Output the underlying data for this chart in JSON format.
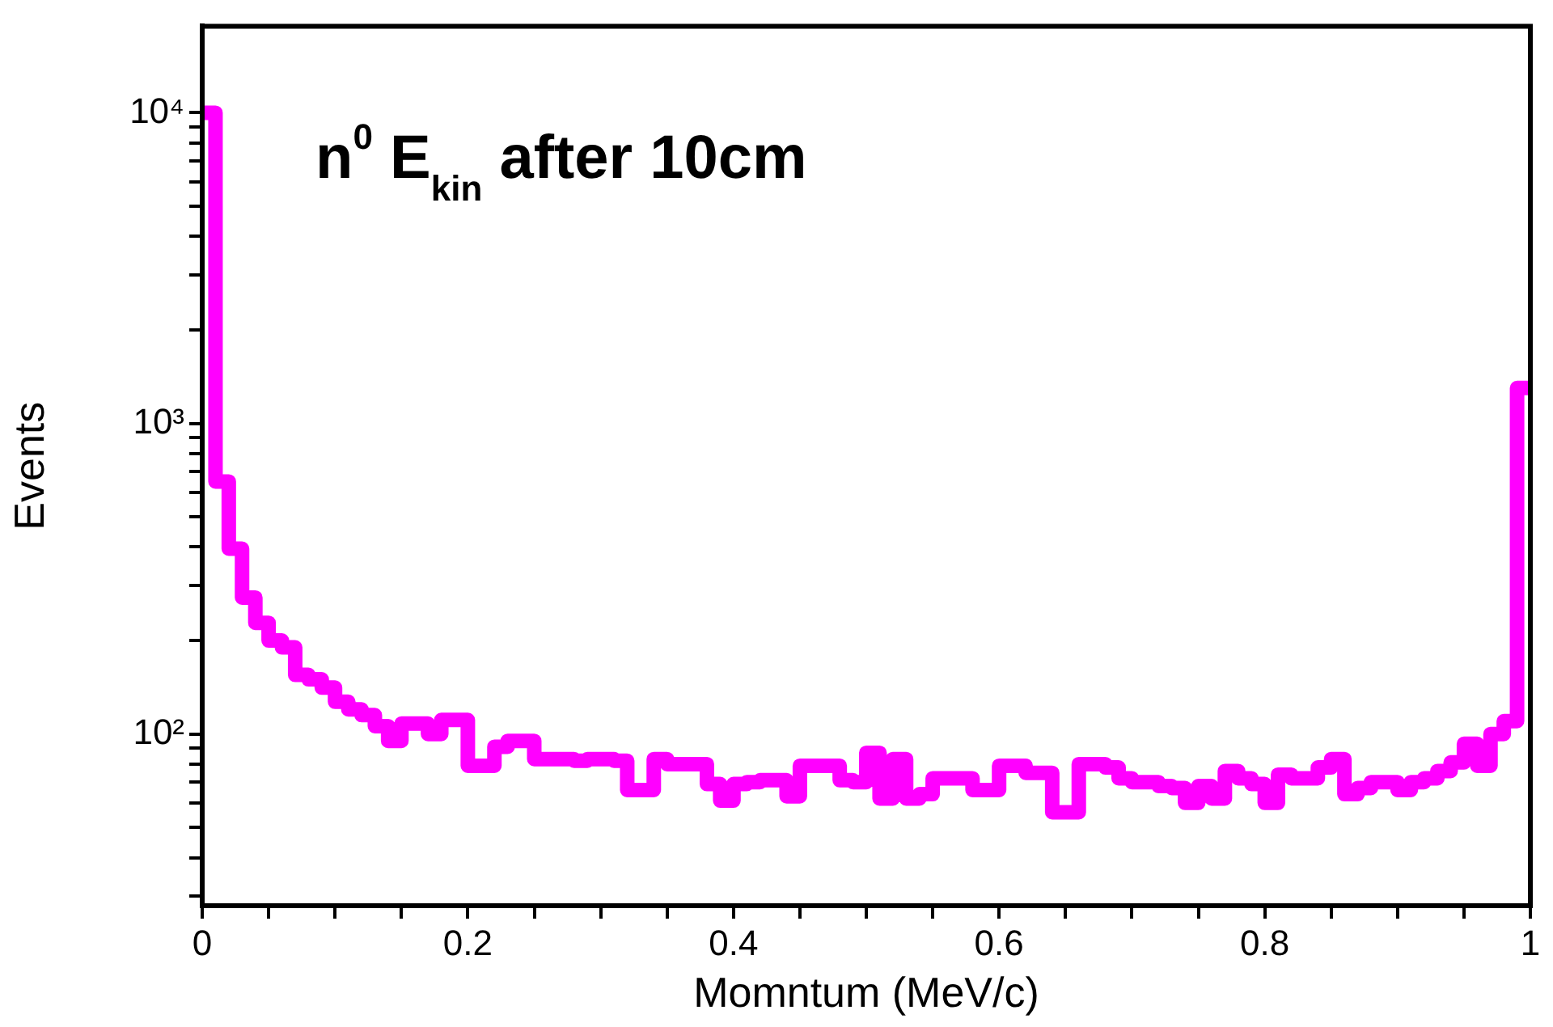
{
  "chart_data": {
    "type": "histogram",
    "title": "n$^{0}$ E$_{kin}$ after 10cm",
    "xlabel": "Momntum (MeV/c)",
    "ylabel": "Events",
    "color": "#ff00ff",
    "log": "y",
    "grid": false,
    "bins": [
      0,
      0.01,
      0.02,
      0.03,
      0.04,
      0.05,
      0.06,
      0.07,
      0.08,
      0.09,
      0.1,
      0.11,
      0.12,
      0.13,
      0.14,
      0.15,
      0.16,
      0.17,
      0.18,
      0.19,
      0.2,
      0.21,
      0.22,
      0.23,
      0.24,
      0.25,
      0.26,
      0.27,
      0.28,
      0.29,
      0.3,
      0.31,
      0.32,
      0.33,
      0.34,
      0.35,
      0.36,
      0.37,
      0.38,
      0.39,
      0.4,
      0.41,
      0.42,
      0.43,
      0.44,
      0.45,
      0.46,
      0.47,
      0.48,
      0.49,
      0.5,
      0.51,
      0.52,
      0.53,
      0.54,
      0.55,
      0.56,
      0.57,
      0.58,
      0.59,
      0.6,
      0.61,
      0.62,
      0.63,
      0.64,
      0.65,
      0.66,
      0.67,
      0.68,
      0.69,
      0.7,
      0.71,
      0.72,
      0.73,
      0.74,
      0.75,
      0.76,
      0.77,
      0.78,
      0.79,
      0.8,
      0.81,
      0.82,
      0.83,
      0.84,
      0.85,
      0.86,
      0.87,
      0.88,
      0.89,
      0.9,
      0.91,
      0.92,
      0.93,
      0.94,
      0.95,
      0.96,
      0.97,
      0.98,
      0.99,
      1
    ],
    "values": [
      10000,
      650,
      395,
      275,
      228,
      200,
      190,
      155,
      150,
      141,
      127,
      120,
      115,
      106,
      95,
      108,
      108,
      100,
      111,
      111,
      79,
      79,
      91,
      95,
      95,
      83,
      83,
      83,
      82,
      83,
      83,
      82,
      66,
      66,
      83,
      80,
      80,
      80,
      69,
      61,
      69,
      70,
      71,
      71,
      63,
      79,
      79,
      79,
      71,
      70,
      87,
      62,
      83,
      62,
      64,
      72,
      72,
      72,
      66,
      66,
      79,
      79,
      75,
      75,
      56,
      56,
      80,
      80,
      78,
      72,
      70,
      70,
      68,
      67,
      60,
      68,
      62,
      76,
      72,
      69,
      60,
      74,
      72,
      72,
      78,
      83,
      64,
      67,
      70,
      70,
      66,
      70,
      72,
      76,
      81,
      93,
      79,
      100,
      110,
      1300
    ],
    "xlim": [
      0,
      1
    ],
    "xticks": [
      0,
      {
        "value": 0.05,
        "label": null
      },
      {
        "value": 0.1,
        "label": null
      },
      {
        "value": 0.15,
        "label": null
      },
      0.2,
      {
        "value": 0.25,
        "label": null
      },
      {
        "value": 0.3,
        "label": null
      },
      {
        "value": 0.35,
        "label": null
      },
      0.4,
      {
        "value": 0.45,
        "label": null
      },
      {
        "value": 0.5,
        "label": null
      },
      {
        "value": 0.55,
        "label": null
      },
      0.6,
      {
        "value": 0.65,
        "label": null
      },
      {
        "value": 0.7,
        "label": null
      },
      {
        "value": 0.75,
        "label": null
      },
      0.8,
      {
        "value": 0.85,
        "label": null
      },
      {
        "value": 0.9,
        "label": null
      },
      {
        "value": 0.95,
        "label": null
      },
      1
    ],
    "ylim": [
      28,
      19000
    ],
    "yticks": [
      {
        "value": 30,
        "label": null
      },
      {
        "value": 40,
        "label": null
      },
      {
        "value": 50,
        "label": null
      },
      {
        "value": 60,
        "label": null
      },
      {
        "value": 70,
        "label": null
      },
      {
        "value": 80,
        "label": null
      },
      {
        "value": 90,
        "label": null
      },
      {
        "value": 100,
        "label": "10²"
      },
      {
        "value": 200,
        "label": null
      },
      {
        "value": 300,
        "label": null
      },
      {
        "value": 400,
        "label": null
      },
      {
        "value": 500,
        "label": null
      },
      {
        "value": 600,
        "label": null
      },
      {
        "value": 700,
        "label": null
      },
      {
        "value": 800,
        "label": null
      },
      {
        "value": 900,
        "label": null
      },
      {
        "value": 1000,
        "label": "10³"
      },
      {
        "value": 2000,
        "label": null
      },
      {
        "value": 3000,
        "label": null
      },
      {
        "value": 4000,
        "label": null
      },
      {
        "value": 5000,
        "label": null
      },
      {
        "value": 6000,
        "label": null
      },
      {
        "value": 7000,
        "label": null
      },
      {
        "value": 8000,
        "label": null
      },
      {
        "value": 9000,
        "label": null
      },
      {
        "value": 10000,
        "label": "10⁴"
      }
    ]
  }
}
